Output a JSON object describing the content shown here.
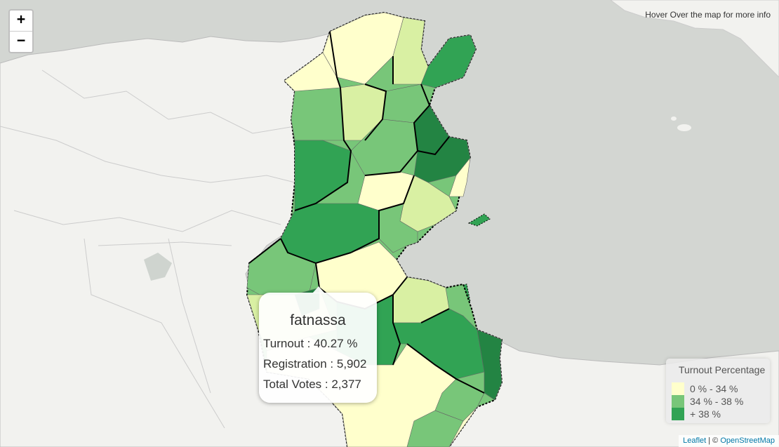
{
  "map": {
    "zoom_in_label": "+",
    "zoom_out_label": "−",
    "hover_info": "Hover Over the map for more info"
  },
  "popup": {
    "name": "fatnassa",
    "turnout": "Turnout : 40.27 %",
    "registration": "Registration : 5,902",
    "total_votes": "Total Votes : 2,377"
  },
  "legend": {
    "title": "Turnout Percentage",
    "items": [
      {
        "label": "0 % - 34 %",
        "color": "#ffffcc"
      },
      {
        "label": "34 % - 38 %",
        "color": "#78c679"
      },
      {
        "label": "+ 38 %",
        "color": "#31a354"
      }
    ]
  },
  "colors": {
    "sea": "#d3d6d2",
    "land": "#f2f2ef",
    "low": "#ffffcc",
    "low2": "#d9f0a3",
    "mid": "#78c679",
    "high": "#31a354",
    "high2": "#238443"
  },
  "attribution": {
    "leaflet": "Leaflet",
    "separator": " | © ",
    "osm": "OpenStreetMap"
  }
}
